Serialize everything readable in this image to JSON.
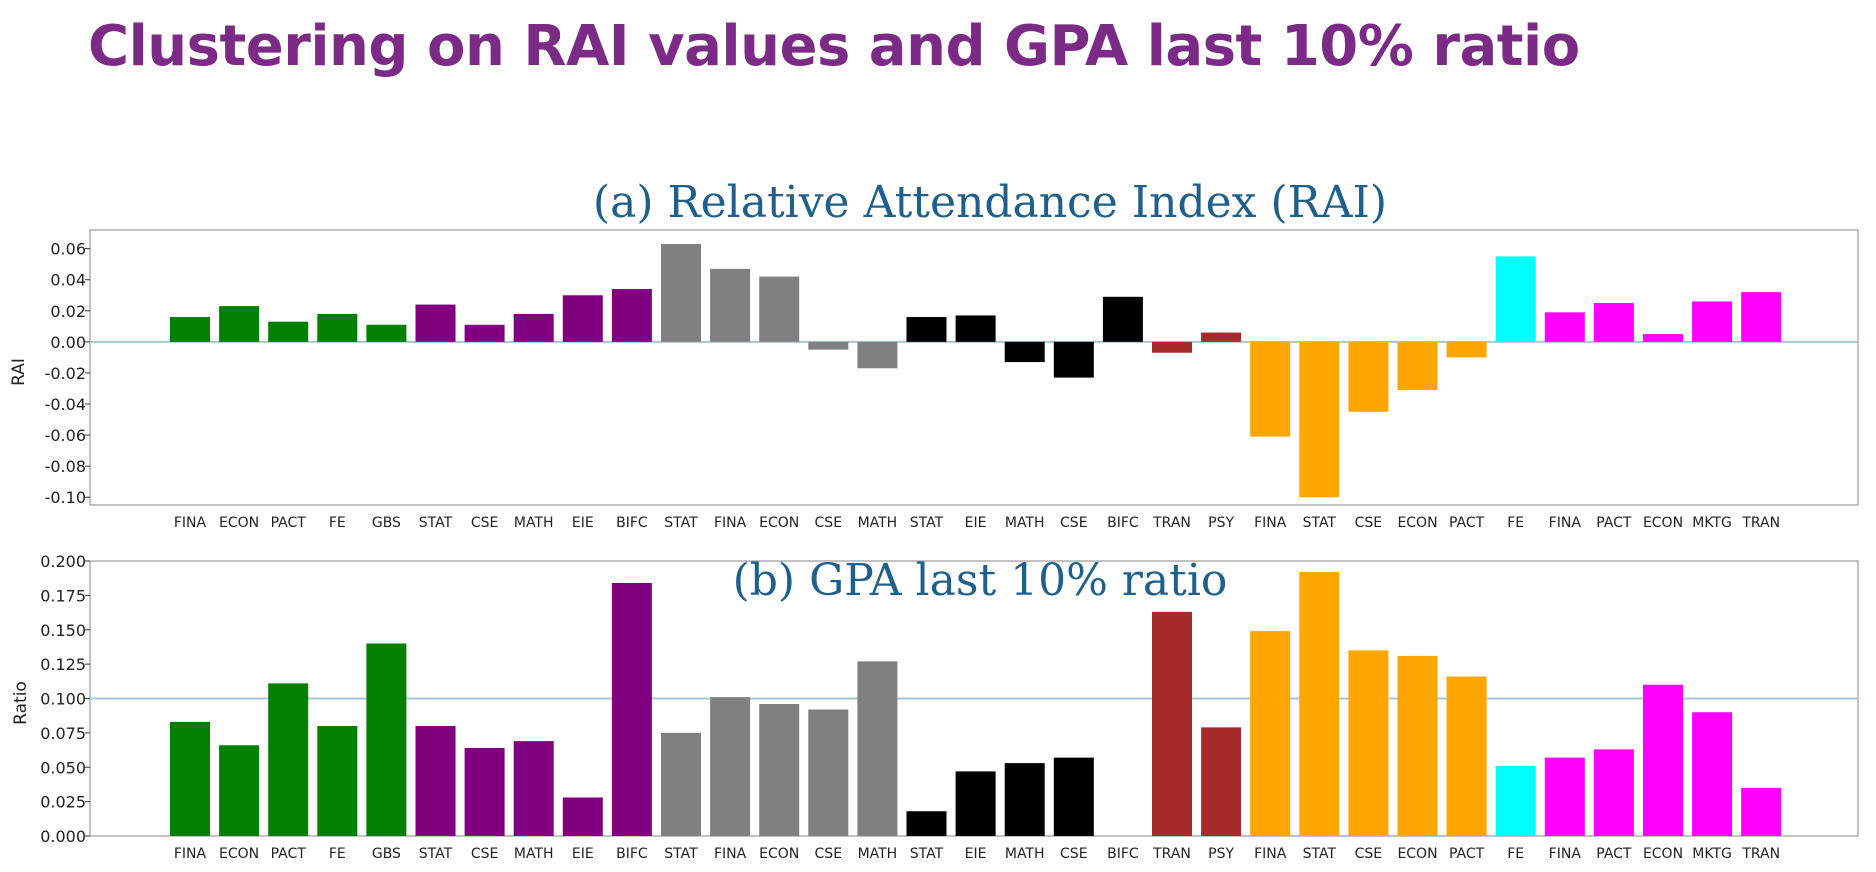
{
  "title": "Clustering on RAI values and GPA last 10% ratio",
  "colors": {
    "green": "#008000",
    "purple": "#800080",
    "gray": "#808080",
    "black": "#000000",
    "brown": "#a52a2a",
    "orange": "#ffa500",
    "cyan": "#00ffff",
    "magenta": "#ff00ff",
    "reference_line": "#a9c6d8",
    "title_purple": "#7b2a85",
    "chart_title": "#1f5f8b"
  },
  "chart_data": [
    {
      "type": "bar",
      "title": "(a) Relative Attendance Index (RAI)",
      "ylabel": "RAI",
      "ylim": [
        -0.105,
        0.072
      ],
      "yticks": [
        "0.06",
        "0.04",
        "0.02",
        "0.00",
        "-0.02",
        "-0.04",
        "-0.06",
        "-0.08",
        "-0.10"
      ],
      "ytick_values": [
        0.06,
        0.04,
        0.02,
        0.0,
        -0.02,
        -0.04,
        -0.06,
        -0.08,
        -0.1
      ],
      "reference_line": 0.0,
      "categories": [
        "FINA",
        "ECON",
        "PACT",
        "FE",
        "GBS",
        "STAT",
        "CSE",
        "MATH",
        "EIE",
        "BIFC",
        "STAT",
        "FINA",
        "ECON",
        "CSE",
        "MATH",
        "STAT",
        "EIE",
        "MATH",
        "CSE",
        "BIFC",
        "TRAN",
        "PSY",
        "FINA",
        "STAT",
        "CSE",
        "ECON",
        "PACT",
        "FE",
        "FINA",
        "PACT",
        "ECON",
        "MKTG",
        "TRAN"
      ],
      "values": [
        0.016,
        0.023,
        0.013,
        0.018,
        0.011,
        0.024,
        0.011,
        0.018,
        0.03,
        0.034,
        0.063,
        0.047,
        0.042,
        -0.005,
        -0.017,
        0.016,
        0.017,
        -0.013,
        -0.023,
        0.029,
        -0.007,
        0.006,
        -0.061,
        -0.1,
        -0.045,
        -0.031,
        -0.01,
        0.055,
        0.019,
        0.025,
        0.005,
        0.026,
        0.032
      ],
      "bar_colors": [
        "green",
        "green",
        "green",
        "green",
        "green",
        "purple",
        "purple",
        "purple",
        "purple",
        "purple",
        "gray",
        "gray",
        "gray",
        "gray",
        "gray",
        "black",
        "black",
        "black",
        "black",
        "black",
        "brown",
        "brown",
        "orange",
        "orange",
        "orange",
        "orange",
        "orange",
        "cyan",
        "magenta",
        "magenta",
        "magenta",
        "magenta",
        "magenta"
      ],
      "grid": false
    },
    {
      "type": "bar",
      "title": "(b) GPA last 10% ratio",
      "ylabel": "Ratio",
      "ylim": [
        0,
        0.2
      ],
      "yticks": [
        "0.200",
        "0.175",
        "0.150",
        "0.125",
        "0.100",
        "0.075",
        "0.050",
        "0.025",
        "0.000"
      ],
      "ytick_values": [
        0.2,
        0.175,
        0.15,
        0.125,
        0.1,
        0.075,
        0.05,
        0.025,
        0.0
      ],
      "reference_line": 0.1,
      "categories": [
        "FINA",
        "ECON",
        "PACT",
        "FE",
        "GBS",
        "STAT",
        "CSE",
        "MATH",
        "EIE",
        "BIFC",
        "STAT",
        "FINA",
        "ECON",
        "CSE",
        "MATH",
        "STAT",
        "EIE",
        "MATH",
        "CSE",
        "BIFC",
        "TRAN",
        "PSY",
        "FINA",
        "STAT",
        "CSE",
        "ECON",
        "PACT",
        "FE",
        "FINA",
        "PACT",
        "ECON",
        "MKTG",
        "TRAN"
      ],
      "values": [
        0.083,
        0.066,
        0.111,
        0.08,
        0.14,
        0.08,
        0.064,
        0.069,
        0.028,
        0.184,
        0.075,
        0.101,
        0.096,
        0.092,
        0.127,
        0.018,
        0.047,
        0.053,
        0.057,
        0.0,
        0.163,
        0.079,
        0.149,
        0.192,
        0.135,
        0.131,
        0.116,
        0.051,
        0.057,
        0.063,
        0.11,
        0.09,
        0.035
      ],
      "bar_colors": [
        "green",
        "green",
        "green",
        "green",
        "green",
        "purple",
        "purple",
        "purple",
        "purple",
        "purple",
        "gray",
        "gray",
        "gray",
        "gray",
        "gray",
        "black",
        "black",
        "black",
        "black",
        "black",
        "brown",
        "brown",
        "orange",
        "orange",
        "orange",
        "orange",
        "orange",
        "cyan",
        "magenta",
        "magenta",
        "magenta",
        "magenta",
        "magenta"
      ],
      "grid": false
    }
  ]
}
